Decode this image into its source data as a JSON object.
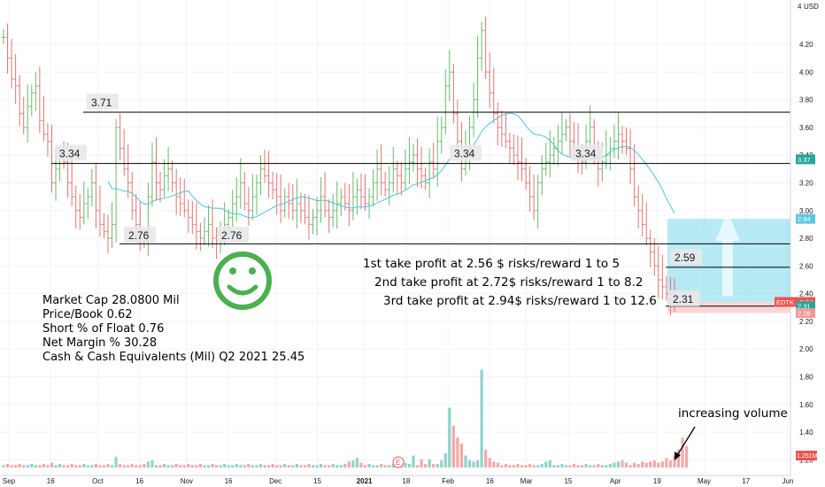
{
  "chart_data": {
    "type": "candlestick",
    "ticker": "EDTK",
    "currency": "USD",
    "price_axis": {
      "min": 1.1,
      "max": 4.52,
      "ticks": [
        "4.20",
        "4.00",
        "3.80",
        "3.60",
        "3.40",
        "3.20",
        "3.00",
        "2.80",
        "2.60",
        "2.40",
        "2.20",
        "2.00",
        "1.80",
        "1.60",
        "1.40",
        "1.20"
      ],
      "tick_values": [
        4.2,
        4.0,
        3.8,
        3.6,
        3.4,
        3.2,
        3.0,
        2.8,
        2.6,
        2.4,
        2.2,
        2.0,
        1.8,
        1.6,
        1.4,
        1.2
      ],
      "top_label": "4"
    },
    "time_axis": {
      "labels": [
        "Sep",
        "16",
        "Oct",
        "16",
        "Nov",
        "16",
        "Dec",
        "15",
        "2021",
        "18",
        "Feb",
        "16",
        "Mar",
        "15",
        "Apr",
        "19",
        "May",
        "17",
        "Jun"
      ],
      "positions": [
        0,
        16,
        34,
        50,
        68,
        84,
        102,
        118,
        136,
        152,
        168,
        184,
        198,
        214,
        232,
        248,
        266,
        282,
        298
      ]
    },
    "price_tags": [
      {
        "value": 3.37,
        "text": "3.37",
        "color": "#26a69a"
      },
      {
        "value": 2.94,
        "text": "2.94",
        "color": "#5fc7dd"
      },
      {
        "value": 2.34,
        "text": "EDTK · 2.34",
        "color": "#ef5350"
      },
      {
        "value": 2.31,
        "text": "2.31",
        "color": "#26a69a"
      },
      {
        "value": 2.26,
        "text": "2.26",
        "color": "#ef9a9a"
      }
    ],
    "volume_tag": "1.251M",
    "horizontal_levels": [
      {
        "value": 3.71,
        "label": "3.71"
      },
      {
        "value": 3.34,
        "label": "3.34"
      },
      {
        "value": 2.76,
        "label": "2.76"
      },
      {
        "value": 2.59,
        "label": "2.59"
      },
      {
        "value": 2.31,
        "label": "2.31"
      }
    ],
    "level_labels": [
      "3.71",
      "3.34",
      "2.76",
      "2.76",
      "3.34",
      "3.34",
      "2.59",
      "2.31"
    ],
    "take_profits": [
      "1st take profit at 2.56 $ risks/reward 1 to 5",
      "2nd take profit at 2.72$ risks/reward 1 to 8.2",
      "3rd take profit at 2.94$ risks/reward 1 to 12.6"
    ],
    "stats": [
      "Market Cap 28.0800 Mil",
      "Price/Book 0.62",
      "Short % of Float 0.76",
      " Net Margin % 30.28",
      "Cash & Cash Equivalents (Mil) Q2 2021 25.45"
    ],
    "volume_note": "increasing volume",
    "earnings_marker": "E",
    "position": {
      "entry": 2.34,
      "stop": 2.26,
      "target": 2.94
    },
    "series": [
      {
        "name": "price",
        "values": [
          4.25,
          4.1,
          3.95,
          3.9,
          3.7,
          3.6,
          3.75,
          3.85,
          3.9,
          3.65,
          3.55,
          3.5,
          3.2,
          3.3,
          3.4,
          3.35,
          3.2,
          3.1,
          3.0,
          2.95,
          3.05,
          3.1,
          3.2,
          3.0,
          2.9,
          2.85,
          2.8,
          2.9,
          3.6,
          3.45,
          3.3,
          3.2,
          3.0,
          2.9,
          2.8,
          2.78,
          3.1,
          3.35,
          3.2,
          3.15,
          3.25,
          3.3,
          3.2,
          3.1,
          3.05,
          3.0,
          2.95,
          2.9,
          2.85,
          2.8,
          2.85,
          2.9,
          2.8,
          2.78,
          2.8,
          2.9,
          2.95,
          3.05,
          3.1,
          3.2,
          3.05,
          3.0,
          3.1,
          3.2,
          3.3,
          3.25,
          3.2,
          3.15,
          3.1,
          3.0,
          3.1,
          3.05,
          3.0,
          3.05,
          3.0,
          2.95,
          2.9,
          2.95,
          3.0,
          3.1,
          3.0,
          2.95,
          3.0,
          3.05,
          3.1,
          3.05,
          3.0,
          3.1,
          3.15,
          3.1,
          3.05,
          3.1,
          3.2,
          3.3,
          3.2,
          3.15,
          3.2,
          3.3,
          3.25,
          3.2,
          3.3,
          3.35,
          3.4,
          3.3,
          3.25,
          3.2,
          3.35,
          3.3,
          3.5,
          3.6,
          3.9,
          4.0,
          3.7,
          3.5,
          3.3,
          3.4,
          3.6,
          3.8,
          4.1,
          4.3,
          4.0,
          3.85,
          3.7,
          3.6,
          3.55,
          3.5,
          3.45,
          3.4,
          3.35,
          3.3,
          3.2,
          3.1,
          3.0,
          3.2,
          3.3,
          3.35,
          3.4,
          3.45,
          3.5,
          3.55,
          3.6,
          3.5,
          3.45,
          3.4,
          3.35,
          3.5,
          3.6,
          3.4,
          3.3,
          3.35,
          3.4,
          3.45,
          3.5,
          3.55,
          3.5,
          3.45,
          3.3,
          3.1,
          3.0,
          2.9,
          2.8,
          2.7,
          2.6,
          2.5,
          2.45,
          2.4,
          2.35,
          2.34
        ]
      },
      {
        "name": "volume",
        "values": [
          0.02,
          0.03,
          0.02,
          0.02,
          0.03,
          0.02,
          0.02,
          0.03,
          0.02,
          0.02,
          0.03,
          0.02,
          0.04,
          0.02,
          0.03,
          0.02,
          0.02,
          0.03,
          0.02,
          0.02,
          0.03,
          0.02,
          0.02,
          0.03,
          0.02,
          0.02,
          0.03,
          0.02,
          0.09,
          0.03,
          0.02,
          0.02,
          0.03,
          0.02,
          0.02,
          0.03,
          0.05,
          0.06,
          0.02,
          0.02,
          0.03,
          0.02,
          0.02,
          0.03,
          0.02,
          0.02,
          0.03,
          0.02,
          0.02,
          0.03,
          0.02,
          0.02,
          0.03,
          0.02,
          0.02,
          0.03,
          0.02,
          0.02,
          0.03,
          0.02,
          0.02,
          0.03,
          0.02,
          0.02,
          0.03,
          0.02,
          0.02,
          0.03,
          0.02,
          0.02,
          0.03,
          0.02,
          0.02,
          0.03,
          0.02,
          0.02,
          0.03,
          0.02,
          0.02,
          0.03,
          0.02,
          0.02,
          0.03,
          0.02,
          0.02,
          0.03,
          0.05,
          0.06,
          0.08,
          0.04,
          0.02,
          0.03,
          0.02,
          0.02,
          0.03,
          0.02,
          0.02,
          0.03,
          0.02,
          0.06,
          0.04,
          0.03,
          0.1,
          0.02,
          0.07,
          0.03,
          0.07,
          0.03,
          0.03,
          0.06,
          0.12,
          0.5,
          0.35,
          0.25,
          0.2,
          0.1,
          0.06,
          0.05,
          0.06,
          0.82,
          0.15,
          0.08,
          0.05,
          0.04,
          0.02,
          0.03,
          0.02,
          0.02,
          0.03,
          0.02,
          0.02,
          0.03,
          0.02,
          0.02,
          0.03,
          0.05,
          0.06,
          0.02,
          0.02,
          0.03,
          0.02,
          0.02,
          0.03,
          0.02,
          0.02,
          0.03,
          0.02,
          0.02,
          0.03,
          0.02,
          0.02,
          0.03,
          0.04,
          0.05,
          0.06,
          0.04,
          0.02,
          0.04,
          0.03,
          0.05,
          0.04,
          0.05,
          0.06,
          0.04,
          0.05,
          0.08,
          0.06,
          0.1,
          0.15,
          0.25,
          0.18
        ]
      }
    ]
  }
}
